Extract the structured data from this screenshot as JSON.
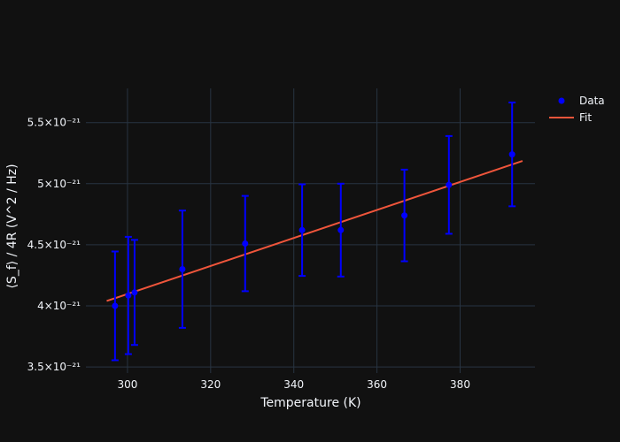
{
  "chart_data": {
    "type": "scatter",
    "xlabel": "Temperature (K)",
    "ylabel": "⟨S_f⟩ / 4R (V^2 / Hz)",
    "xlim": [
      290,
      398
    ],
    "ylim": [
      3.45e-21,
      5.78e-21
    ],
    "x_ticks": [
      300,
      320,
      340,
      360,
      380
    ],
    "y_ticks": [
      {
        "value": 3.5e-21,
        "label": "3.5×10⁻²¹"
      },
      {
        "value": 4e-21,
        "label": "4×10⁻²¹"
      },
      {
        "value": 4.5e-21,
        "label": "4.5×10⁻²¹"
      },
      {
        "value": 5e-21,
        "label": "5×10⁻²¹"
      },
      {
        "value": 5.5e-21,
        "label": "5.5×10⁻²¹"
      }
    ],
    "grid": true,
    "legend_position": "top-right",
    "series": [
      {
        "name": "Data",
        "kind": "markers_with_error_bars",
        "color": "#0000ff",
        "points": [
          {
            "x": 297.0,
            "y": 4e-21,
            "err": 4.45e-22
          },
          {
            "x": 300.2,
            "y": 4.085e-21,
            "err": 4.8e-22
          },
          {
            "x": 301.7,
            "y": 4.11e-21,
            "err": 4.3e-22
          },
          {
            "x": 313.2,
            "y": 4.3e-21,
            "err": 4.8e-22
          },
          {
            "x": 328.3,
            "y": 4.51e-21,
            "err": 3.9e-22
          },
          {
            "x": 342.0,
            "y": 4.62e-21,
            "err": 3.75e-22
          },
          {
            "x": 351.3,
            "y": 4.62e-21,
            "err": 3.8e-22
          },
          {
            "x": 366.6,
            "y": 4.74e-21,
            "err": 3.75e-22
          },
          {
            "x": 377.3,
            "y": 4.99e-21,
            "err": 4e-22
          },
          {
            "x": 392.5,
            "y": 5.24e-21,
            "err": 4.25e-22
          }
        ]
      },
      {
        "name": "Fit",
        "kind": "line",
        "color": "#ef553b",
        "x": [
          295.0,
          395.0
        ],
        "y": [
          4.04e-21,
          5.186e-21
        ]
      }
    ]
  }
}
